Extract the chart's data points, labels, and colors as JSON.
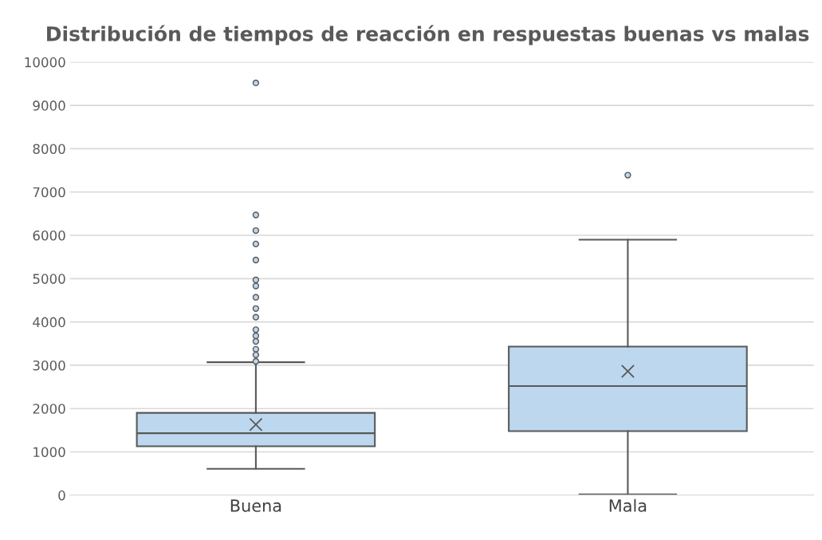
{
  "chart_data": {
    "type": "box",
    "title": "Distribución de tiempos de reacción en respuestas buenas vs malas",
    "categories": [
      "Buena",
      "Mala"
    ],
    "color": "#bdd7ee",
    "boxes": [
      {
        "low": 610,
        "q1": 1130,
        "median": 1430,
        "q3": 1900,
        "high": 3070,
        "mean": 1630,
        "outliers": [
          9520,
          6470,
          6110,
          5800,
          5430,
          4970,
          4830,
          4570,
          4310,
          4110,
          3820,
          3680,
          3550,
          3370,
          3240,
          3090
        ]
      },
      {
        "low": 20,
        "q1": 1480,
        "median": 2520,
        "q3": 3430,
        "high": 5900,
        "mean": 2860,
        "outliers": [
          7390
        ]
      }
    ],
    "ylim": [
      0,
      10000
    ],
    "yticks": [
      0,
      1000,
      2000,
      3000,
      4000,
      5000,
      6000,
      7000,
      8000,
      9000,
      10000
    ],
    "grid": "y",
    "legend": false
  }
}
